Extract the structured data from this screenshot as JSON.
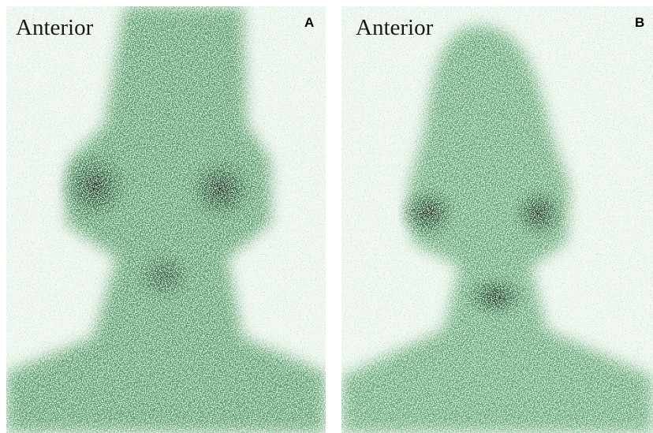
{
  "panels": [
    {
      "view": "Anterior",
      "label": "A"
    },
    {
      "view": "Anterior",
      "label": "B"
    }
  ]
}
